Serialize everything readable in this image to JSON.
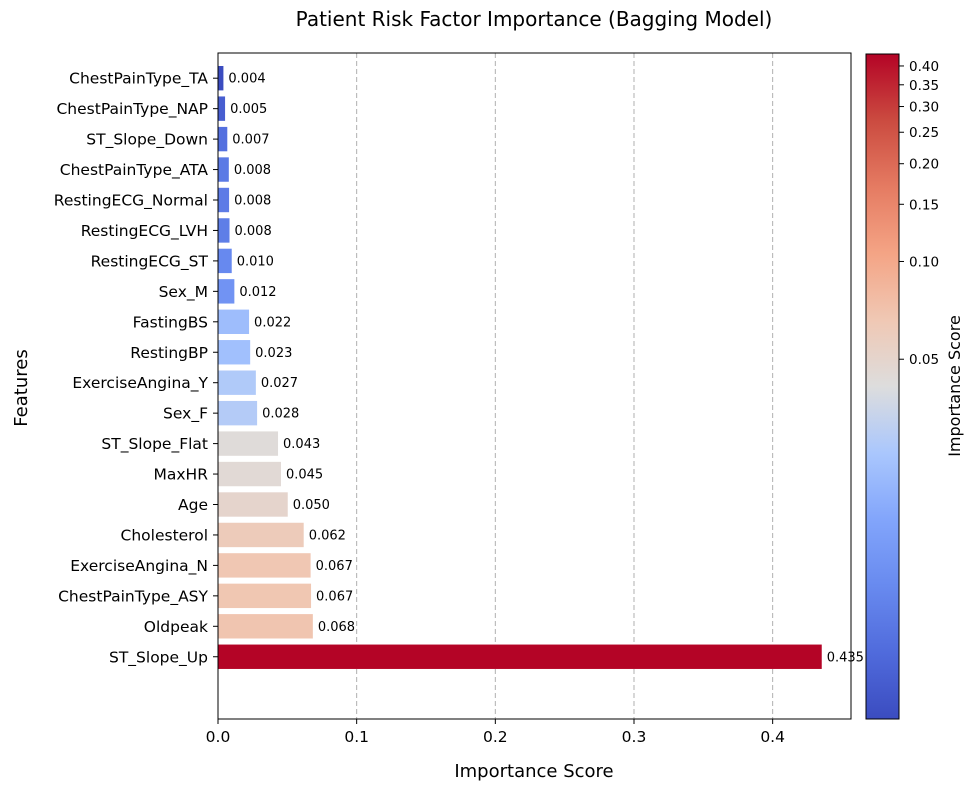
{
  "chart_data": {
    "type": "bar",
    "orientation": "horizontal",
    "title": "Patient Risk Factor Importance (Bagging Model)",
    "xlabel": "Importance Score",
    "ylabel": "Features",
    "xlim": [
      0,
      0.4565
    ],
    "xticks": [
      0.0,
      0.1,
      0.2,
      0.3,
      0.4
    ],
    "xtick_labels": [
      "0.0",
      "0.1",
      "0.2",
      "0.3",
      "0.4"
    ],
    "grid": "x-dashed",
    "colormap": "coolwarm",
    "categories": [
      "ST_Slope_Up",
      "Oldpeak",
      "ChestPainType_ASY",
      "ExerciseAngina_N",
      "Cholesterol",
      "Age",
      "MaxHR",
      "ST_Slope_Flat",
      "Sex_F",
      "ExerciseAngina_Y",
      "RestingBP",
      "FastingBS",
      "Sex_M",
      "RestingECG_ST",
      "RestingECG_LVH",
      "RestingECG_Normal",
      "ChestPainType_ATA",
      "ST_Slope_Down",
      "ChestPainType_NAP",
      "ChestPainType_TA"
    ],
    "values": [
      0.4354,
      0.0684,
      0.0671,
      0.0668,
      0.0618,
      0.0503,
      0.0454,
      0.0433,
      0.0282,
      0.0273,
      0.0232,
      0.0224,
      0.0118,
      0.0099,
      0.0083,
      0.008,
      0.0078,
      0.0067,
      0.0051,
      0.0039
    ],
    "value_labels": [
      "0.435",
      "0.068",
      "0.067",
      "0.067",
      "0.062",
      "0.050",
      "0.045",
      "0.043",
      "0.028",
      "0.027",
      "0.023",
      "0.022",
      "0.012",
      "0.010",
      "0.008",
      "0.008",
      "0.008",
      "0.007",
      "0.005",
      "0.004"
    ],
    "colorbar": {
      "label": "Importance Score",
      "scale": "log-like",
      "min": 0.0039,
      "max": 0.4354,
      "ticks": [
        0.05,
        0.1,
        0.15,
        0.2,
        0.25,
        0.3,
        0.35,
        0.4
      ],
      "tick_labels": [
        "0.05",
        "0.10",
        "0.15",
        "0.20",
        "0.25",
        "0.30",
        "0.35",
        "0.40"
      ]
    }
  }
}
